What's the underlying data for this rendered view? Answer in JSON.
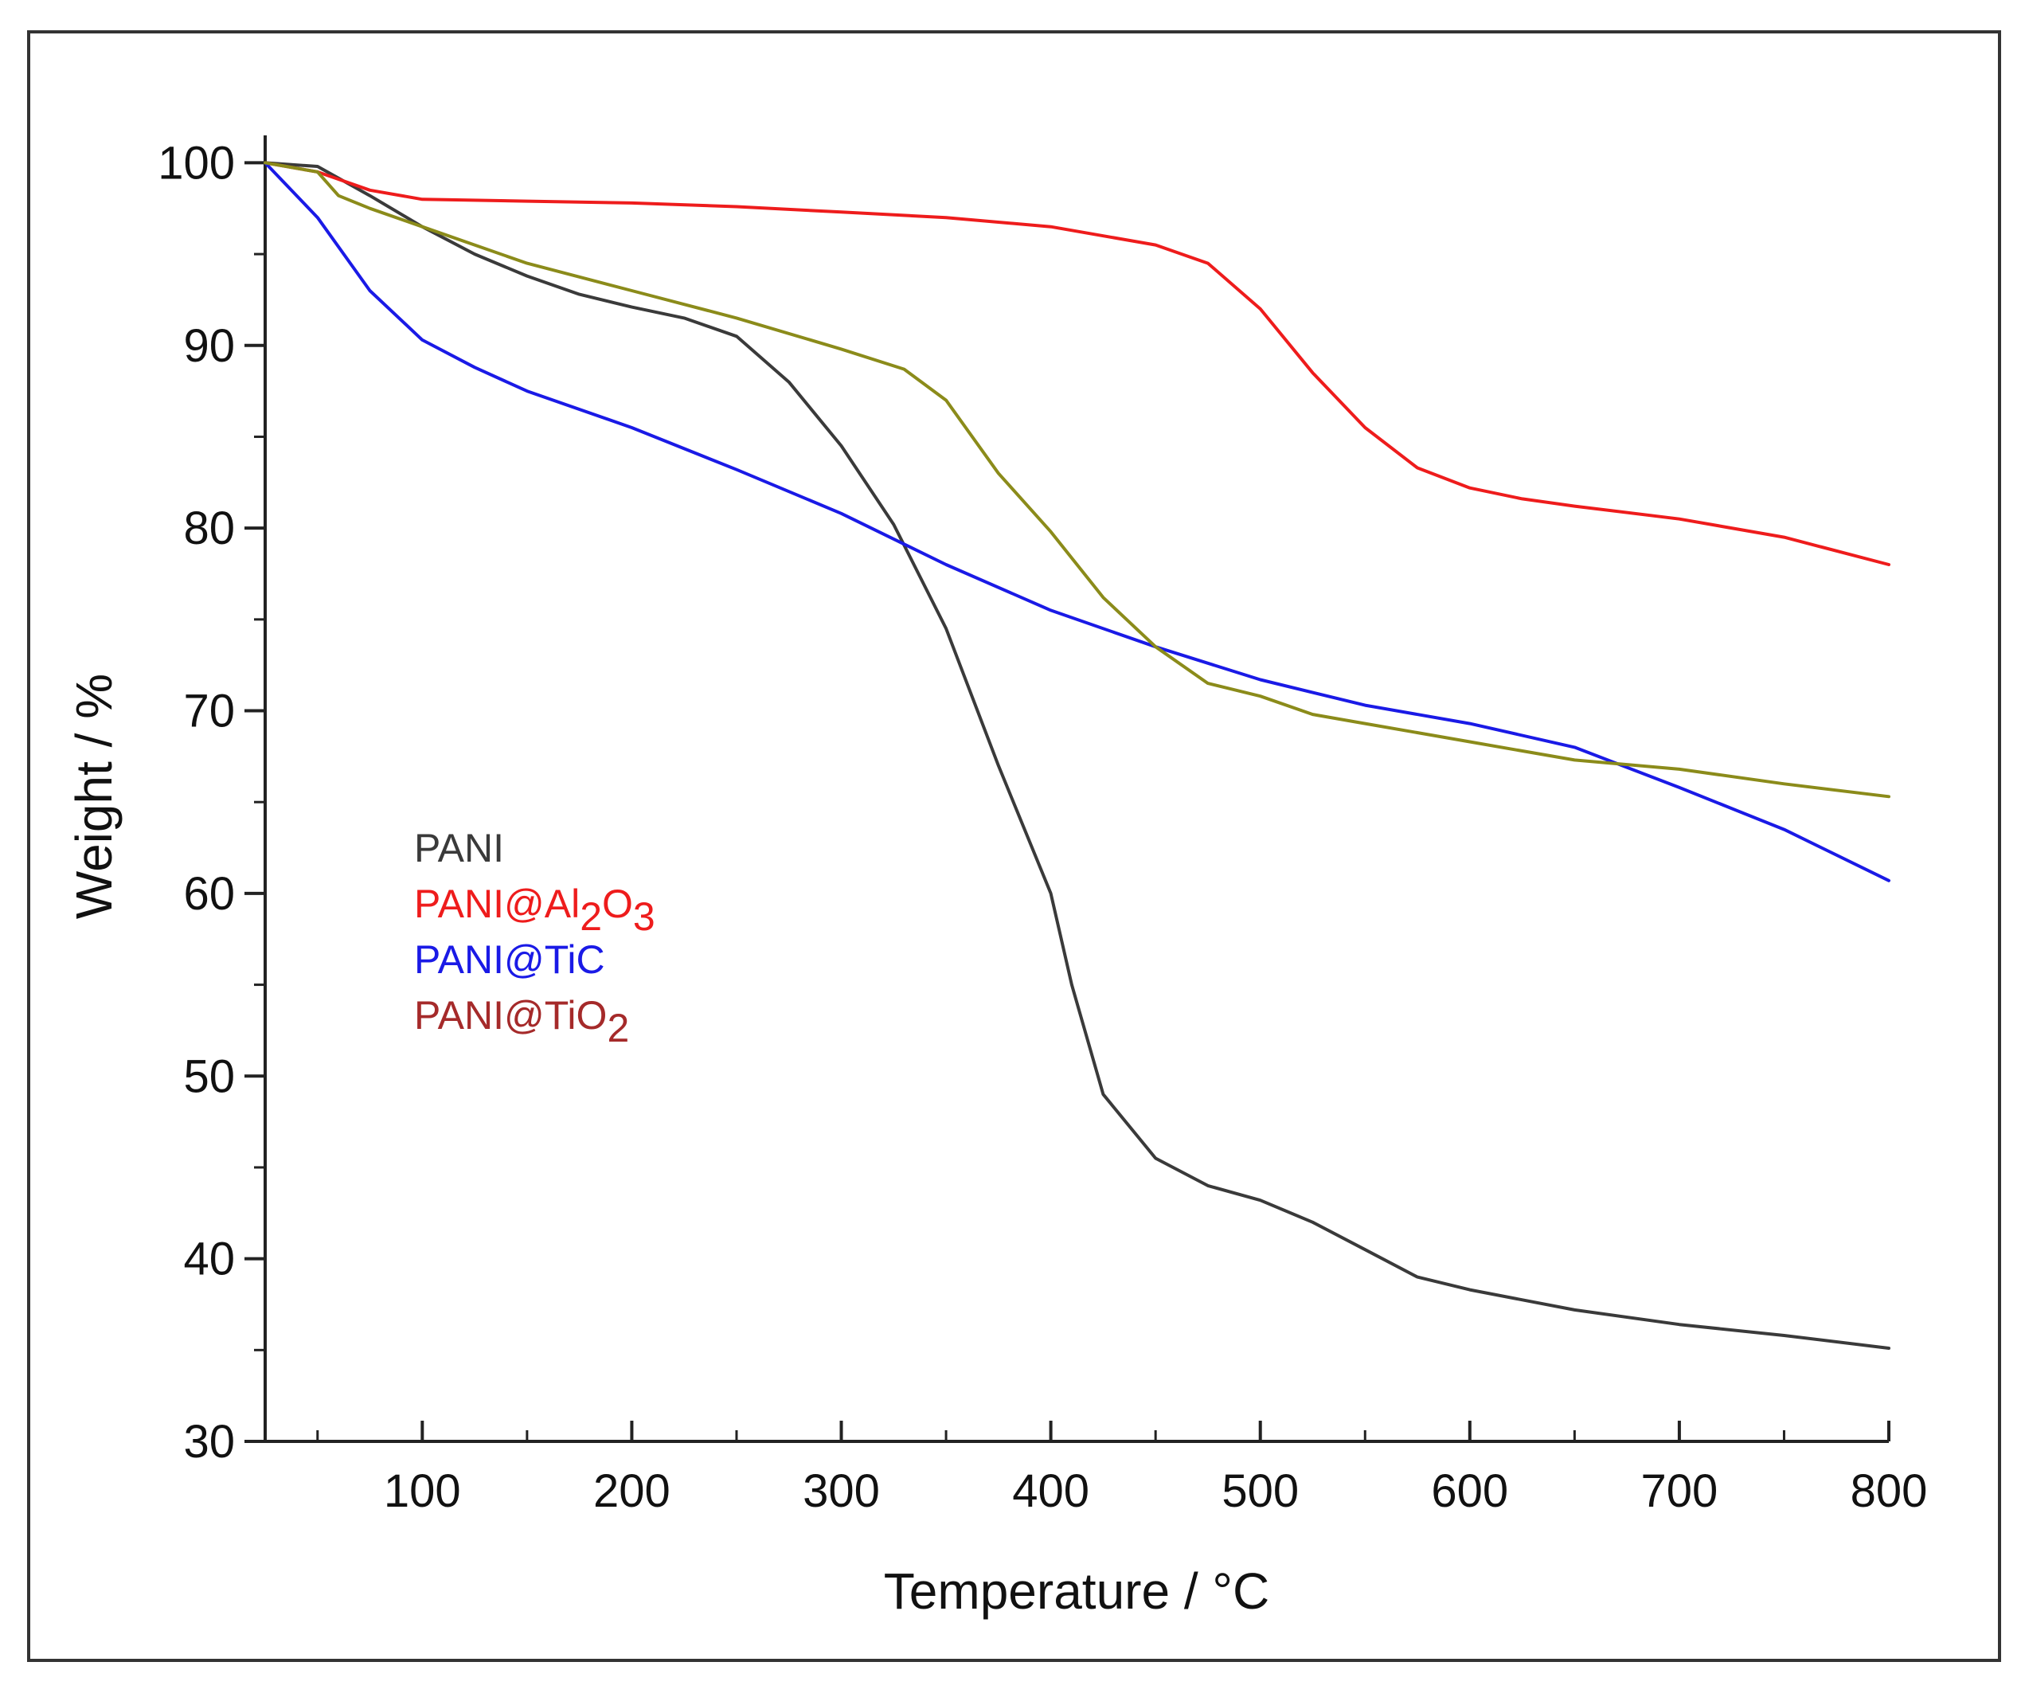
{
  "chart_data": {
    "type": "line",
    "title": "",
    "xlabel": "Temperature / °C",
    "ylabel": "Weight / %",
    "xlim": [
      25,
      800
    ],
    "ylim": [
      30,
      101.5
    ],
    "xticks": [
      100,
      200,
      300,
      400,
      500,
      600,
      700,
      800
    ],
    "xtick_labels": [
      "100",
      "200",
      "300",
      "400",
      "500",
      "600",
      "700",
      "800"
    ],
    "yticks": [
      30,
      40,
      50,
      60,
      70,
      80,
      90,
      100
    ],
    "ytick_labels": [
      "30",
      "40",
      "50",
      "60",
      "70",
      "80",
      "90",
      "100"
    ],
    "grid": false,
    "legend_position": "center-left",
    "series": [
      {
        "name": "PANI",
        "legend": {
          "main": "PANI",
          "parts": []
        },
        "color": "#3a3a3a",
        "x": [
          25,
          50,
          75,
          100,
          125,
          150,
          175,
          200,
          225,
          250,
          275,
          300,
          325,
          350,
          375,
          400,
          410,
          425,
          450,
          475,
          500,
          525,
          550,
          575,
          600,
          650,
          700,
          750,
          800
        ],
        "y": [
          100,
          99.8,
          98.2,
          96.5,
          95,
          93.8,
          92.8,
          92.1,
          91.5,
          90.5,
          88,
          84.5,
          80.2,
          74.5,
          67,
          60,
          55,
          49,
          45.5,
          44,
          43.2,
          42,
          40.5,
          39,
          38.3,
          37.2,
          36.4,
          35.8,
          35.1
        ]
      },
      {
        "name": "PANI@Al2O3",
        "legend": {
          "main": "PANI@Al",
          "parts": [
            "2",
            "O",
            "3"
          ]
        },
        "color": "#ee1c1c",
        "x": [
          25,
          50,
          75,
          100,
          150,
          200,
          250,
          300,
          350,
          400,
          450,
          475,
          500,
          525,
          550,
          575,
          600,
          625,
          650,
          700,
          750,
          800
        ],
        "y": [
          100,
          99.5,
          98.5,
          98,
          97.9,
          97.8,
          97.6,
          97.3,
          97,
          96.5,
          95.5,
          94.5,
          92,
          88.5,
          85.5,
          83.3,
          82.2,
          81.6,
          81.2,
          80.5,
          79.5,
          78
        ]
      },
      {
        "name": "PANI@TiC",
        "legend": {
          "main": "PANI@TiC",
          "parts": []
        },
        "color": "#1a1ae6",
        "x": [
          25,
          50,
          75,
          100,
          125,
          150,
          200,
          250,
          300,
          350,
          400,
          450,
          500,
          550,
          600,
          650,
          700,
          750,
          800
        ],
        "y": [
          100,
          97,
          93,
          90.3,
          88.8,
          87.5,
          85.5,
          83.2,
          80.8,
          78,
          75.5,
          73.5,
          71.7,
          70.3,
          69.3,
          68,
          65.8,
          63.5,
          60.7
        ]
      },
      {
        "name": "PANI@TiO2",
        "legend": {
          "main": "PANI@TiO",
          "parts": [
            "2"
          ]
        },
        "color": "#8b8b1a",
        "legend_color": "#a52a2a",
        "x": [
          25,
          50,
          60,
          75,
          100,
          150,
          200,
          250,
          300,
          330,
          350,
          375,
          400,
          425,
          450,
          475,
          500,
          525,
          550,
          600,
          650,
          700,
          750,
          800
        ],
        "y": [
          100,
          99.5,
          98.2,
          97.5,
          96.5,
          94.5,
          93,
          91.5,
          89.8,
          88.7,
          87,
          83,
          79.8,
          76.2,
          73.5,
          71.5,
          70.8,
          69.8,
          69.3,
          68.3,
          67.3,
          66.8,
          66,
          65.3
        ]
      }
    ]
  }
}
